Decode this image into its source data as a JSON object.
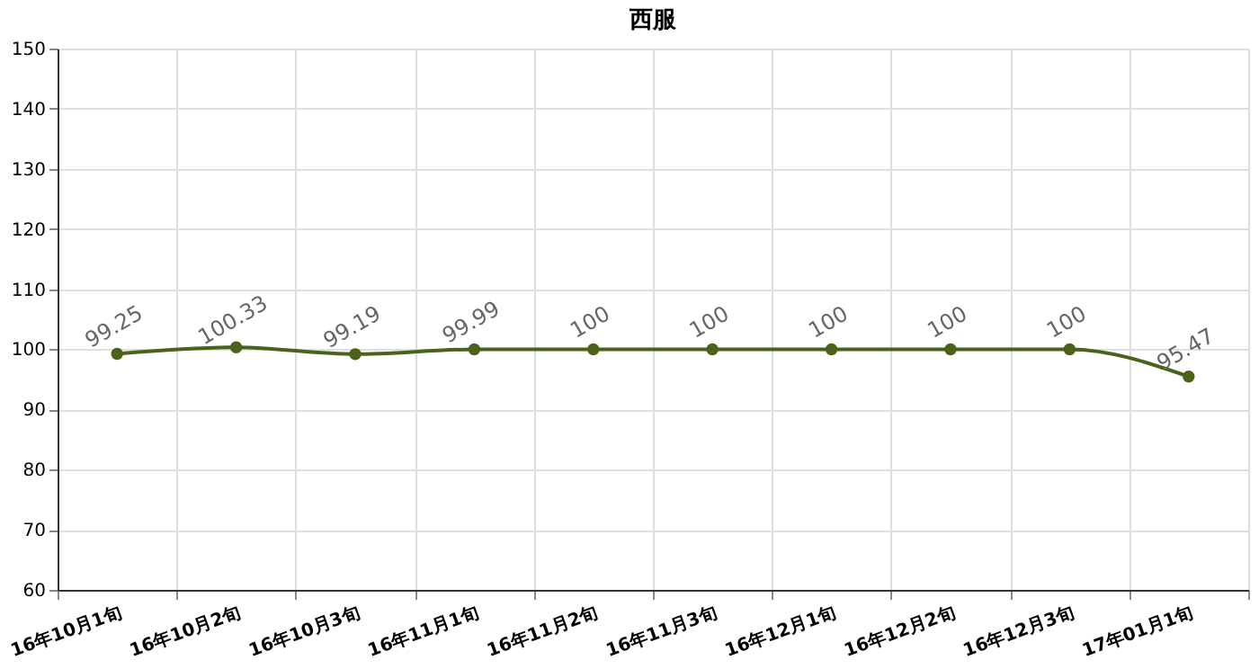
{
  "chart_data": {
    "type": "line",
    "title": "西服",
    "categories": [
      "16年10月1旬",
      "16年10月2旬",
      "16年10月3旬",
      "16年11月1旬",
      "16年11月2旬",
      "16年11月3旬",
      "16年12月1旬",
      "16年12月2旬",
      "16年12月3旬",
      "17年01月1旬"
    ],
    "series": [
      {
        "color": "#4b6319",
        "values": [
          99.25,
          100.33,
          99.19,
          99.99,
          100,
          100,
          100,
          100,
          100,
          95.47
        ]
      }
    ],
    "ylim": [
      60,
      150
    ],
    "yticks": [
      60,
      70,
      80,
      90,
      100,
      110,
      120,
      130,
      140,
      150
    ],
    "grid": true,
    "marker": "circle",
    "line_style": "solid",
    "data_labels": true
  }
}
